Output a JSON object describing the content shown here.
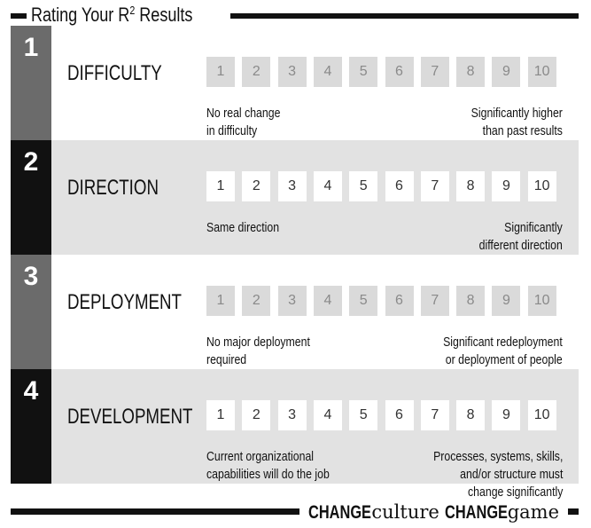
{
  "title_pre": "Rating Your R",
  "title_sup": "2",
  "title_post": " Results",
  "colors": {
    "dark": "#111111",
    "mid_gray": "#6b6b6b",
    "light_gray": "#e2e2e2",
    "box_gray": "#dadada",
    "box_gray_text": "#8a8a8a",
    "box_white_text": "#333333"
  },
  "scale_values": [
    "1",
    "2",
    "3",
    "4",
    "5",
    "6",
    "7",
    "8",
    "9",
    "10"
  ],
  "rows": [
    {
      "num": "1",
      "name": "DIFFICULTY",
      "left_note": "No real change\nin difficulty",
      "right_note": "Significantly higher\nthan past results"
    },
    {
      "num": "2",
      "name": "DIRECTION",
      "left_note": "Same direction",
      "right_note": "Significantly\ndifferent direction"
    },
    {
      "num": "3",
      "name": "DEPLOYMENT",
      "left_note": "No major deployment\nrequired",
      "right_note": "Significant redeployment\nor deployment of people\nand/or resources required"
    },
    {
      "num": "4",
      "name": "DEVELOPMENT",
      "left_note": "Current organizational\ncapabilities will do the job",
      "right_note": "Processes, systems, skills,\nand/or structure must\nchange significantly"
    }
  ],
  "brand": {
    "change1": "CHANGE",
    "culture": "culture",
    "change2": "CHANGE",
    "game": "game"
  }
}
